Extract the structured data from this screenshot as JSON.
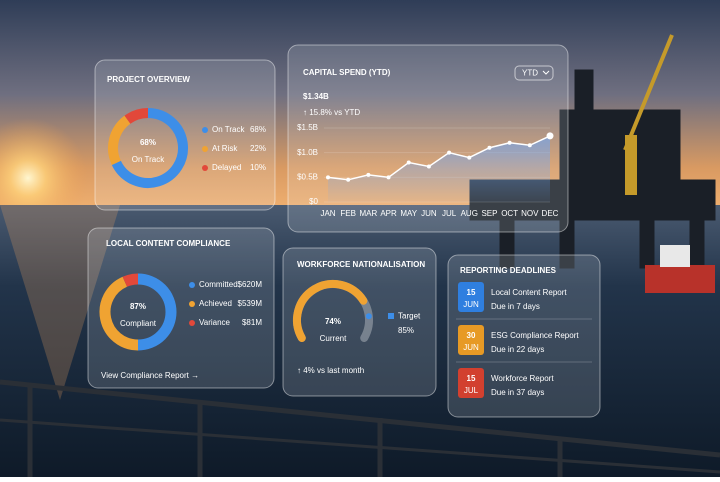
{
  "chart_data": [
    {
      "type": "pie",
      "title": "PROJECT OVERVIEW",
      "categories": [
        "On Track",
        "At Risk",
        "Delayed"
      ],
      "values": [
        68,
        22,
        10
      ],
      "value_labels": [
        "68%",
        "22%",
        "10%"
      ],
      "colors": [
        "#3d8ee8",
        "#f0a332",
        "#e2483a"
      ]
    },
    {
      "type": "line",
      "title": "CAPITAL SPEND (YTD)",
      "headline": "$1.34B",
      "change": "↑ 15.8% vs YTD",
      "period": "YTD",
      "categories": [
        "JAN",
        "FEB",
        "MAR",
        "APR",
        "MAY",
        "JUN",
        "JUL",
        "AUG",
        "SEP",
        "OCT",
        "NOV",
        "DEC"
      ],
      "values": [
        0.5,
        0.45,
        0.55,
        0.5,
        0.8,
        0.72,
        1.0,
        0.9,
        1.1,
        1.2,
        1.15,
        1.34
      ],
      "color": "#ffffff",
      "ylim": [
        0,
        1.5
      ],
      "yticks": [
        {
          "value": 0,
          "label": "$0"
        },
        {
          "value": 0.5,
          "label": "$0.5B"
        },
        {
          "value": 1,
          "label": "$1.0B"
        },
        {
          "value": 1.5,
          "label": "$1.5B"
        }
      ]
    },
    {
      "type": "pie",
      "title": "LOCAL CONTENT COMPLIANCE",
      "categories": [
        "Committed",
        "Achieved",
        "Variance"
      ],
      "values": [
        620,
        539,
        81
      ],
      "value_labels": [
        "$620M",
        "$539M",
        "$81M"
      ],
      "colors": [
        "#3d8ee8",
        "#f0a332",
        "#e2483a"
      ],
      "center": {
        "value": 87,
        "label": "87%",
        "caption": "Compliant"
      },
      "link": "View Compliance Report →"
    },
    {
      "type": "gauge",
      "title": "WORKFORCE NATIONALISATION",
      "value": 74,
      "value_label": "74%",
      "caption": "Current",
      "target": 85,
      "target_label": "85%",
      "target_name": "Target",
      "ylim": [
        0,
        100
      ],
      "color": "#f0a332",
      "target_color": "#3d8ee8",
      "footnote": "↑ 4% vs last month"
    }
  ],
  "reporting_deadlines": {
    "title": "REPORTING DEADLINES",
    "items": [
      {
        "day": "15",
        "month": "JUN",
        "name": "Local Content Report",
        "due": "Due in 7 days",
        "color": "#2f7fe0",
        "due_color": "#5aa9ff"
      },
      {
        "day": "30",
        "month": "JUN",
        "name": "ESG Compliance Report",
        "due": "Due in 22 days",
        "color": "#e79a25",
        "due_color": "#f3b23c"
      },
      {
        "day": "15",
        "month": "JUL",
        "name": "Workforce Report",
        "due": "Due in 37 days",
        "color": "#d2402f",
        "due_color": "#ff6b5a"
      }
    ]
  }
}
